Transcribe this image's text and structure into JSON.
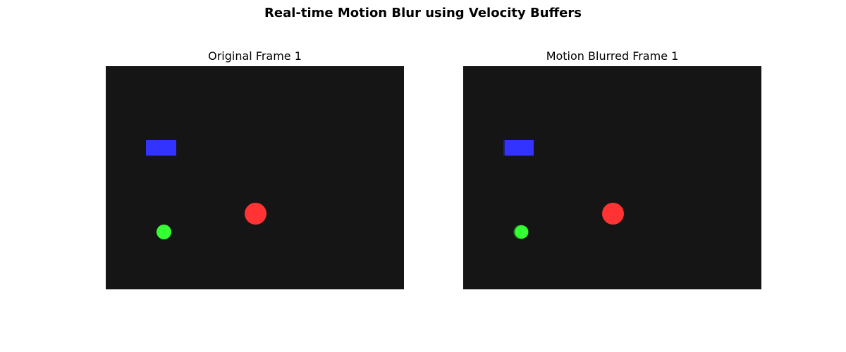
{
  "figure": {
    "title": "Real-time Motion Blur using Velocity Buffers",
    "background_color": "#151515"
  },
  "panels": [
    {
      "title": "Original Frame 1",
      "blurred": false
    },
    {
      "title": "Motion Blurred Frame 1",
      "blurred": true
    }
  ],
  "objects": [
    {
      "name": "blue-rectangle",
      "shape": "rectangle",
      "color": "#3333ff"
    },
    {
      "name": "red-circle",
      "shape": "circle",
      "color": "#ff3333"
    },
    {
      "name": "green-circle",
      "shape": "circle",
      "color": "#33ff33"
    }
  ]
}
